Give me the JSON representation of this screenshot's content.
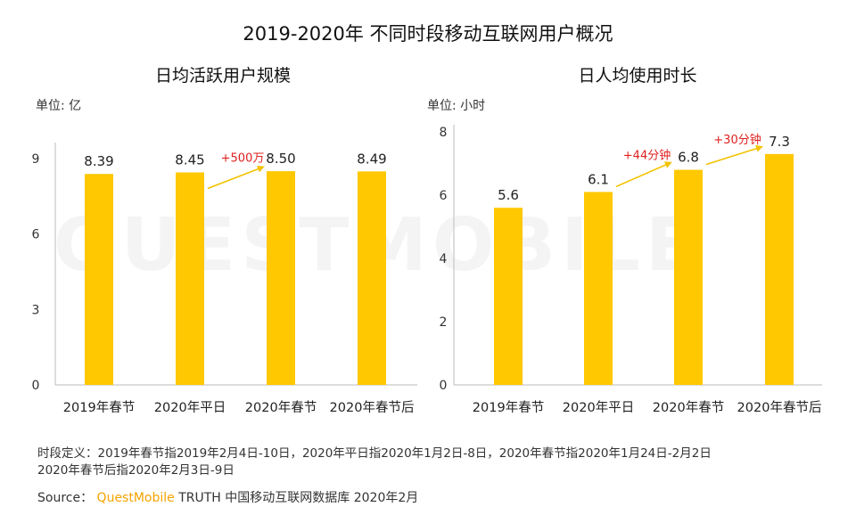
{
  "title": "2019-2020年 不同时段移动互联网用户概况",
  "watermark": "QUESTMOBILE",
  "chart_data": [
    {
      "type": "bar",
      "title": "日均活跃用户规模",
      "unit_label": "单位: 亿",
      "categories": [
        "2019年春节",
        "2020年平日",
        "2020年春节",
        "2020年春节后"
      ],
      "values": [
        8.39,
        8.45,
        8.5,
        8.49
      ],
      "value_labels": [
        "8.39",
        "8.45",
        "8.50",
        "8.49"
      ],
      "yticks": [
        "0",
        "3",
        "6",
        "9"
      ],
      "ylim": [
        0,
        9
      ],
      "bar_color": "#FFC800",
      "annotations": [
        {
          "text": "+500万",
          "from_index": 1,
          "to_index": 2
        }
      ]
    },
    {
      "type": "bar",
      "title": "日人均使用时长",
      "unit_label": "单位: 小时",
      "categories": [
        "2019年春节",
        "2020年平日",
        "2020年春节",
        "2020年春节后"
      ],
      "values": [
        5.6,
        6.1,
        6.8,
        7.3
      ],
      "value_labels": [
        "5.6",
        "6.1",
        "6.8",
        "7.3"
      ],
      "yticks": [
        "0",
        "2",
        "4",
        "6",
        "8"
      ],
      "ylim": [
        0,
        8
      ],
      "bar_color": "#FFC800",
      "annotations": [
        {
          "text": "+44分钟",
          "from_index": 1,
          "to_index": 2
        },
        {
          "text": "+30分钟",
          "from_index": 2,
          "to_index": 3
        }
      ]
    }
  ],
  "footnote": {
    "line1": "时段定义：2019年春节指2019年2月4日-10日，2020年平日指2020年1月2日-8日，2020年春节指2020年1月24日-2月2日",
    "line2": "2020年春节后指2020年2月3日-9日"
  },
  "source": {
    "prefix": "Source：",
    "brand": "QuestMobile",
    "suffix": "TRUTH 中国移动互联网数据库 2020年2月"
  },
  "colors": {
    "bar": "#FFC800",
    "arrow": "#F2C200",
    "annotation_text": "#E02020",
    "axis": "#BBBBBB",
    "brand": "#F5A300"
  }
}
